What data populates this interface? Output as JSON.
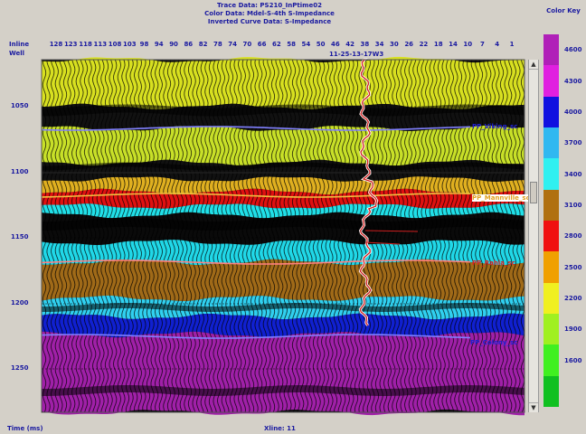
{
  "header": {
    "trace_data": "Trace Data: PS210_InPtime02",
    "color_data": "Color Data: Mdel-S-4th S-Impedance",
    "inverted_curve": "Inverted Curve Data: S-Impedance"
  },
  "axes": {
    "inline_label": "Inline",
    "well_label": "Well",
    "well_name": "11-25-13-17W3",
    "inline_ticks": [
      "128",
      "123",
      "118",
      "113",
      "108",
      "103",
      "98",
      "94",
      "90",
      "86",
      "82",
      "78",
      "74",
      "70",
      "66",
      "62",
      "58",
      "54",
      "50",
      "46",
      "42",
      "38",
      "34",
      "30",
      "26",
      "22",
      "18",
      "14",
      "10",
      "7",
      "4",
      "1"
    ],
    "time_ticks": [
      "1050",
      "1100",
      "1150",
      "1200",
      "1250"
    ],
    "time_label": "Time (ms)",
    "xline_label": "Xline: 11"
  },
  "horizons": [
    {
      "name": "PP_Viking_sc",
      "color": "#2020d0"
    },
    {
      "name": "PP_Mannville_sc",
      "color": "#e0a020"
    },
    {
      "name": "PP_Rahia_sc",
      "color": "#e02020"
    },
    {
      "name": "PP_Colony_sc",
      "color": "#2020d0"
    }
  ],
  "colorkey": {
    "title": "Color Key",
    "bands": [
      {
        "label": "4600",
        "color": "#b020b8"
      },
      {
        "label": "4300",
        "color": "#e020e0"
      },
      {
        "label": "4000",
        "color": "#1010e0"
      },
      {
        "label": "3700",
        "color": "#30b8f0"
      },
      {
        "label": "3400",
        "color": "#30f0f0"
      },
      {
        "label": "3100",
        "color": "#b07010"
      },
      {
        "label": "2800",
        "color": "#f01010"
      },
      {
        "label": "2500",
        "color": "#f0a000"
      },
      {
        "label": "2200",
        "color": "#f0f020"
      },
      {
        "label": "1900",
        "color": "#a0f020"
      },
      {
        "label": "1600",
        "color": "#40f020"
      },
      {
        "label": "",
        "color": "#10c020"
      }
    ]
  },
  "layers": [
    {
      "name": "yellow-green-upper",
      "color": "#d8e020"
    },
    {
      "name": "black-viking",
      "color": "#111111"
    },
    {
      "name": "yellow-green-mid",
      "color": "#c8e028"
    },
    {
      "name": "black-lower",
      "color": "#111111"
    },
    {
      "name": "yellow-orange",
      "color": "#e0b020"
    },
    {
      "name": "red",
      "color": "#e01010"
    },
    {
      "name": "cyan-upper",
      "color": "#20e0e8"
    },
    {
      "name": "black-cyan",
      "color": "#0a0a0a"
    },
    {
      "name": "cyan-lower",
      "color": "#20d8e8"
    },
    {
      "name": "brown",
      "color": "#a06a18"
    },
    {
      "name": "cyan-base",
      "color": "#30d0f0"
    },
    {
      "name": "blue",
      "color": "#1020d0"
    },
    {
      "name": "magenta",
      "color": "#a020a8"
    }
  ]
}
